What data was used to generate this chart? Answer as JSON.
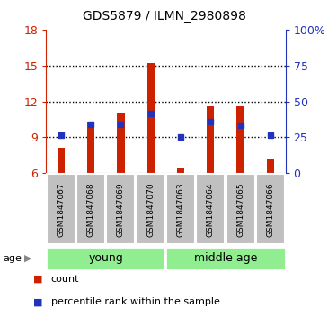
{
  "title": "GDS5879 / ILMN_2980898",
  "categories": [
    "GSM1847067",
    "GSM1847068",
    "GSM1847069",
    "GSM1847070",
    "GSM1847063",
    "GSM1847064",
    "GSM1847065",
    "GSM1847066"
  ],
  "red_top": [
    8.15,
    10.3,
    11.05,
    15.2,
    6.5,
    11.6,
    11.6,
    7.2
  ],
  "blue_vals": [
    9.2,
    10.1,
    10.1,
    11.0,
    9.0,
    10.3,
    10.0,
    9.2
  ],
  "baseline": 6.0,
  "ylim_left": [
    6,
    18
  ],
  "ylim_right": [
    0,
    100
  ],
  "yticks_left": [
    6,
    9,
    12,
    15,
    18
  ],
  "yticks_right": [
    0,
    25,
    50,
    75,
    100
  ],
  "young_indices": [
    0,
    1,
    2,
    3
  ],
  "middle_indices": [
    4,
    5,
    6,
    7
  ],
  "group_labels": [
    "young",
    "middle age"
  ],
  "group_color": "#90ee90",
  "red_color": "#cc2200",
  "blue_color": "#2233bb",
  "bar_bg_color": "#c0c0c0",
  "bar_width": 0.25,
  "legend_count": "count",
  "legend_pct": "percentile rank within the sample",
  "blue_marker_size": 5,
  "bg_white": "#ffffff"
}
